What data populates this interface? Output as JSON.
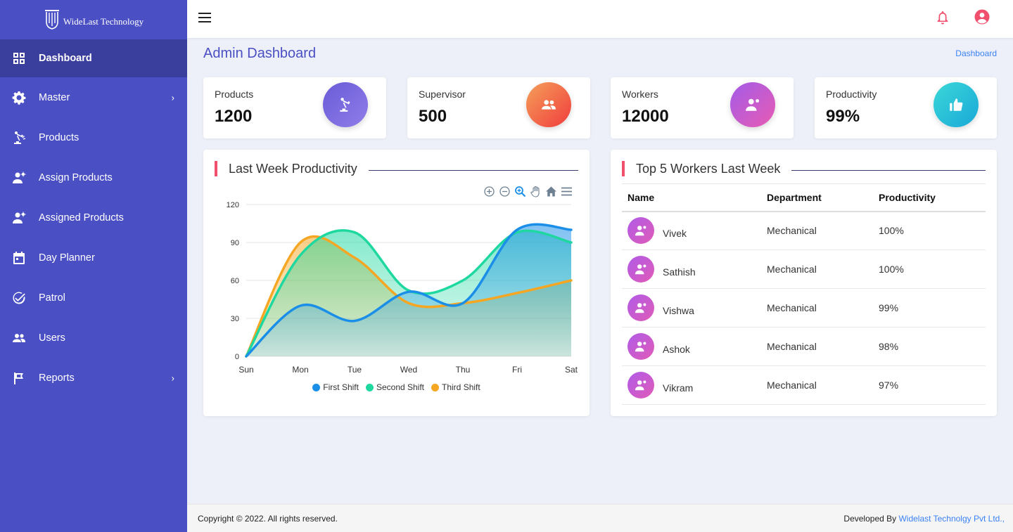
{
  "brand": {
    "name": "WideLast Technology",
    "logo_icon": "wt-logo-icon"
  },
  "sidebar": {
    "items": [
      {
        "label": "Dashboard",
        "icon": "grid-icon",
        "active": true,
        "submenu": false
      },
      {
        "label": "Master",
        "icon": "gear-icon",
        "active": false,
        "submenu": true
      },
      {
        "label": "Products",
        "icon": "robot-arm-icon",
        "active": false,
        "submenu": false
      },
      {
        "label": "Assign Products",
        "icon": "engineer-icon",
        "active": false,
        "submenu": false
      },
      {
        "label": "Assigned Products",
        "icon": "engineer-icon",
        "active": false,
        "submenu": false
      },
      {
        "label": "Day Planner",
        "icon": "calendar-icon",
        "active": false,
        "submenu": false
      },
      {
        "label": "Patrol",
        "icon": "check-circle-icon",
        "active": false,
        "submenu": false
      },
      {
        "label": "Users",
        "icon": "people-icon",
        "active": false,
        "submenu": false
      },
      {
        "label": "Reports",
        "icon": "flag-icon",
        "active": false,
        "submenu": true
      }
    ],
    "arrow": "›"
  },
  "header": {
    "title": "Admin Dashboard",
    "breadcrumb": "Dashboard"
  },
  "stats": [
    {
      "label": "Products",
      "value": "1200",
      "icon": "robot-arm-icon",
      "gradient": [
        "#6a5bd8",
        "#8f7ee8"
      ]
    },
    {
      "label": "Supervisor",
      "value": "500",
      "icon": "people-icon",
      "gradient": [
        "#f5a05a",
        "#f03c3c"
      ]
    },
    {
      "label": "Workers",
      "value": "12000",
      "icon": "engineer-icon",
      "gradient": [
        "#a35be8",
        "#e85bb3"
      ]
    },
    {
      "label": "Productivity",
      "value": "99%",
      "icon": "thumbs-up-icon",
      "gradient": [
        "#3ad8d8",
        "#1aa8d8"
      ]
    }
  ],
  "chart_panel": {
    "title": "Last Week Productivity"
  },
  "chart_data": {
    "type": "area",
    "title": "Last Week Productivity",
    "categories": [
      "Sun",
      "Mon",
      "Tue",
      "Wed",
      "Thu",
      "Fri",
      "Sat"
    ],
    "series": [
      {
        "name": "First Shift",
        "values": [
          0,
          40,
          28,
          51,
          42,
          100,
          100
        ],
        "color": "#1b8fe8"
      },
      {
        "name": "Second Shift",
        "values": [
          0,
          80,
          98,
          52,
          60,
          98,
          90
        ],
        "color": "#1ed8a0"
      },
      {
        "name": "Third Shift",
        "values": [
          0,
          90,
          78,
          42,
          42,
          50,
          60
        ],
        "color": "#f5a623"
      }
    ],
    "yticks": [
      "0",
      "30",
      "60",
      "90",
      "120"
    ],
    "ylim": [
      0,
      120
    ],
    "grid": true,
    "legend": "bottom-center"
  },
  "workers_panel": {
    "title": "Top 5 Workers Last Week",
    "columns": [
      "Name",
      "Department",
      "Productivity"
    ],
    "rows": [
      {
        "name": "Vivek",
        "department": "Mechanical",
        "productivity": "100%"
      },
      {
        "name": "Sathish",
        "department": "Mechanical",
        "productivity": "100%"
      },
      {
        "name": "Vishwa",
        "department": "Mechanical",
        "productivity": "99%"
      },
      {
        "name": "Ashok",
        "department": "Mechanical",
        "productivity": "98%"
      },
      {
        "name": "Vikram",
        "department": "Mechanical",
        "productivity": "97%"
      }
    ]
  },
  "footer": {
    "copyright": "Copyright © 2022. All rights reserved.",
    "developed_by": "Developed By ",
    "developer_link": "Widelast Technolgy Pvt Ltd.,"
  },
  "colors": {
    "sidebar": "#4a4fc4",
    "accent": "#f0506e",
    "title": "#4a4fc4",
    "link": "#3b82f6"
  }
}
